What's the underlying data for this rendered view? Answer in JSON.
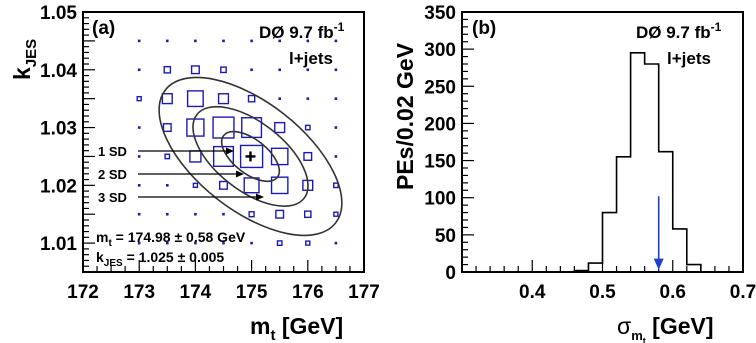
{
  "chart_data": [
    {
      "type": "scatter",
      "panel_label": "(a)",
      "experiment": "DØ 9.7 fb",
      "experiment_sup": "-1",
      "channel": "l+jets",
      "xlabel": "m",
      "xlabel_sub": "t",
      "xlabel_unit": " [GeV]",
      "ylabel": "k",
      "ylabel_sub": "JES",
      "xlim": [
        172,
        177
      ],
      "ylim": [
        1.005,
        1.05
      ],
      "xticks": [
        "172",
        "173",
        "174",
        "175",
        "176",
        "177"
      ],
      "yticks": [
        "1.01",
        "1.02",
        "1.03",
        "1.04",
        "1.05"
      ],
      "best_fit": {
        "m_t": 174.98,
        "k_JES": 1.025
      },
      "fit_text": {
        "mt_label": "m",
        "mt_sub": "t",
        "mt_value": " = 174.98  ± 0.58 GeV",
        "k_label": "k",
        "k_sub": "JES",
        "k_value": " = 1.025  ± 0.005"
      },
      "contours": [
        {
          "label": "1 SD",
          "center": [
            174.98,
            1.025
          ],
          "rx": 0.58,
          "ry": 0.005
        },
        {
          "label": "2 SD",
          "center": [
            174.98,
            1.025
          ],
          "rx": 1.16,
          "ry": 0.01
        },
        {
          "label": "3 SD",
          "center": [
            174.98,
            1.025
          ],
          "rx": 1.74,
          "ry": 0.015
        }
      ],
      "grid_points": {
        "x": [
          173.0,
          173.5,
          174.0,
          174.5,
          175.0,
          175.5,
          176.0,
          176.5
        ],
        "y": [
          1.01,
          1.015,
          1.02,
          1.025,
          1.03,
          1.035,
          1.04,
          1.045
        ],
        "weights": [
          [
            0,
            0,
            0,
            0,
            0.02,
            0.04,
            0.03,
            0.02
          ],
          [
            0,
            0,
            0,
            0.02,
            0.05,
            0.12,
            0.08,
            0.03
          ],
          [
            0,
            0,
            0.03,
            0.12,
            0.45,
            0.55,
            0.2,
            0.04
          ],
          [
            0,
            0.04,
            0.25,
            0.8,
            1.0,
            0.55,
            0.12,
            0.02
          ],
          [
            0.02,
            0.12,
            0.6,
            0.9,
            0.8,
            0.2,
            0.04,
            0
          ],
          [
            0.03,
            0.2,
            0.5,
            0.2,
            0.08,
            0.02,
            0,
            0
          ],
          [
            0.02,
            0.08,
            0.12,
            0.06,
            0.02,
            0,
            0,
            0
          ],
          [
            0.02,
            0.02,
            0.02,
            0.02,
            0,
            0,
            0,
            0
          ]
        ]
      },
      "marker_color": "#1a1ab8"
    },
    {
      "type": "bar",
      "panel_label": "(b)",
      "experiment": "DØ 9.7 fb",
      "experiment_sup": "-1",
      "channel": "l+jets",
      "xlabel": "σ",
      "xlabel_sub": "m",
      "xlabel_subsub": "t",
      "xlabel_unit": " [GeV]",
      "ylabel": "PEs/0.02 GeV",
      "xlim": [
        0.3,
        0.7
      ],
      "ylim": [
        0,
        350
      ],
      "xticks": [
        "0.4",
        "0.5",
        "0.6",
        "0.7"
      ],
      "yticks": [
        "0",
        "50",
        "100",
        "150",
        "200",
        "250",
        "300",
        "350"
      ],
      "bin_edges": [
        0.46,
        0.48,
        0.5,
        0.52,
        0.54,
        0.56,
        0.58,
        0.6,
        0.62,
        0.64
      ],
      "values": [
        2,
        12,
        80,
        155,
        295,
        280,
        162,
        58,
        10
      ],
      "measured_value": 0.58,
      "arrow_color": "#1f3fd0"
    }
  ]
}
